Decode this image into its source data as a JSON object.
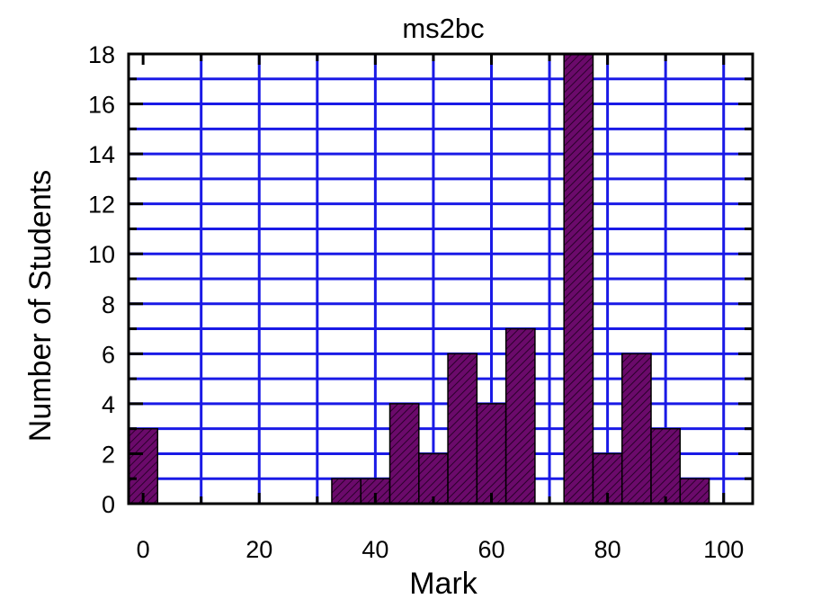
{
  "chart_data": {
    "type": "bar",
    "title": "ms2bc",
    "xlabel": "Mark",
    "ylabel": "Number of Students",
    "bin_width": 5,
    "x": [
      0,
      35,
      40,
      45,
      50,
      55,
      60,
      65,
      75,
      80,
      85,
      90,
      95
    ],
    "values": [
      3,
      1,
      1,
      4,
      2,
      6,
      4,
      7,
      18,
      2,
      6,
      3,
      1
    ],
    "xlim": [
      -2.5,
      105
    ],
    "ylim": [
      0,
      18
    ],
    "x_ticks": [
      "0",
      "20",
      "40",
      "60",
      "80",
      "100"
    ],
    "y_ticks": [
      "0",
      "2",
      "4",
      "6",
      "8",
      "10",
      "12",
      "14",
      "16",
      "18"
    ],
    "grid": true,
    "colors": {
      "bar_fill": "#6b0a6b",
      "bar_hatch": "#2a002a",
      "grid": "#1a1ae6",
      "axes": "#000000"
    }
  }
}
